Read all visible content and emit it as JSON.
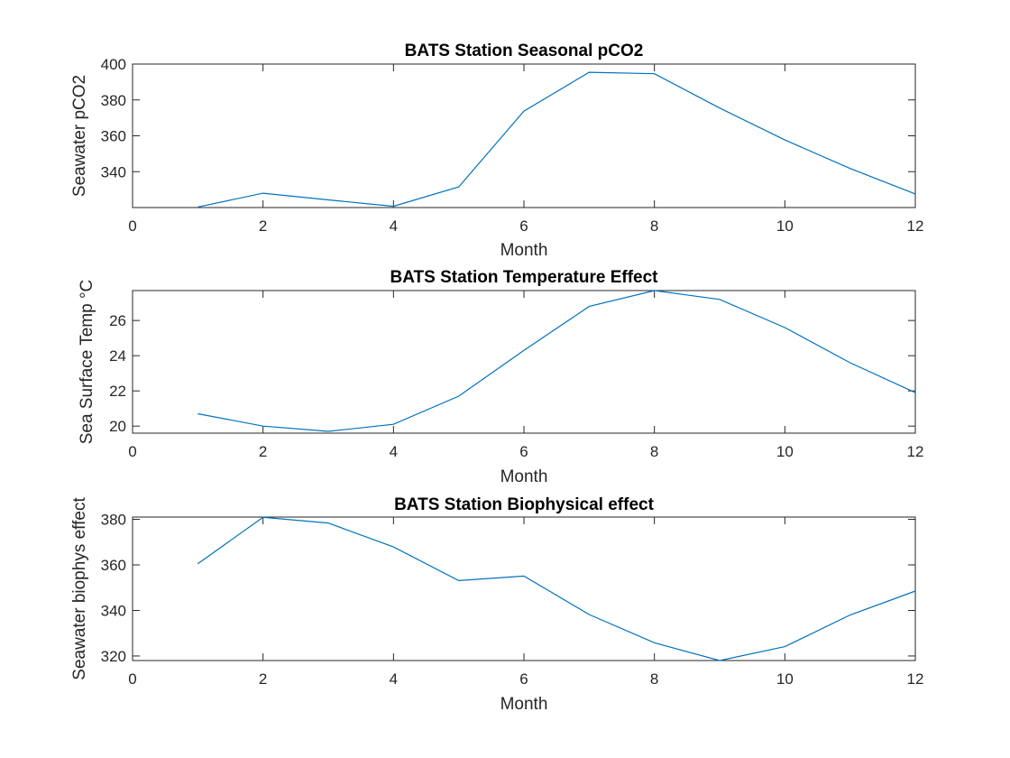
{
  "chart_data": [
    {
      "type": "line",
      "title": "BATS Station Seasonal pCO2",
      "xlabel": "Month",
      "ylabel": "Seawater pCO2",
      "xlim": [
        0,
        12
      ],
      "ylim": [
        320,
        400
      ],
      "xticks": [
        0,
        2,
        4,
        6,
        8,
        10,
        12
      ],
      "yticks": [
        340,
        360,
        380,
        400
      ],
      "grid": false,
      "x": [
        1,
        2,
        3,
        4,
        5,
        6,
        7,
        8,
        9,
        10,
        11,
        12
      ],
      "series": [
        {
          "values": [
            320.3,
            328.0,
            324.3,
            320.7,
            331.5,
            373.8,
            395.4,
            394.6,
            375.5,
            357.7,
            341.8,
            327.6
          ]
        }
      ]
    },
    {
      "type": "line",
      "title": "BATS Station Temperature Effect",
      "xlabel": "Month",
      "ylabel": "Sea Surface Temp °C",
      "xlim": [
        0,
        12
      ],
      "ylim": [
        19.6,
        27.7
      ],
      "xticks": [
        0,
        2,
        4,
        6,
        8,
        10,
        12
      ],
      "yticks": [
        20,
        22,
        24,
        26
      ],
      "grid": false,
      "x": [
        1,
        2,
        3,
        4,
        5,
        6,
        7,
        8,
        9,
        10,
        11,
        12
      ],
      "series": [
        {
          "values": [
            20.7,
            20.0,
            19.7,
            20.1,
            21.7,
            24.3,
            26.8,
            27.7,
            27.2,
            25.6,
            23.6,
            21.9
          ]
        }
      ]
    },
    {
      "type": "line",
      "title": "BATS Station Biophysical effect",
      "xlabel": "Month",
      "ylabel": "Seawater biophys effect",
      "xlim": [
        0,
        12
      ],
      "ylim": [
        318,
        381
      ],
      "xticks": [
        0,
        2,
        4,
        6,
        8,
        10,
        12
      ],
      "yticks": [
        320,
        340,
        360,
        380
      ],
      "grid": false,
      "x": [
        1,
        2,
        3,
        4,
        5,
        6,
        7,
        8,
        9,
        10,
        11,
        12
      ],
      "series": [
        {
          "values": [
            360.5,
            380.9,
            378.4,
            367.9,
            353.1,
            355.1,
            338.2,
            325.8,
            318.0,
            324.1,
            338.0,
            348.5
          ]
        }
      ]
    }
  ],
  "colors": {
    "series": "#0072BD",
    "axes": "#262626",
    "background": "#ffffff"
  }
}
